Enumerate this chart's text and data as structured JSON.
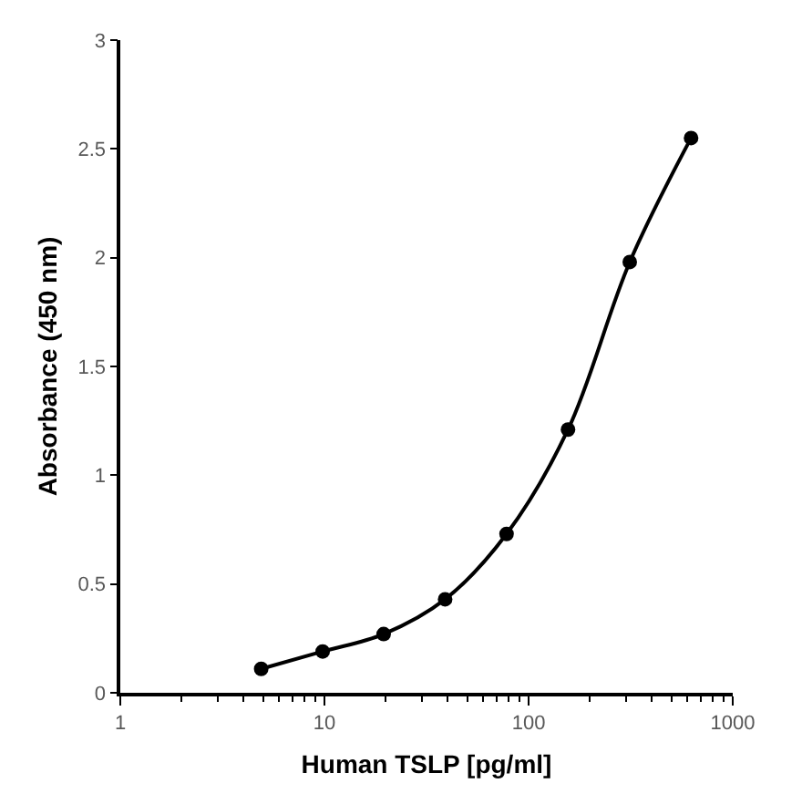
{
  "chart_data": {
    "type": "line",
    "xlabel": "Human TSLP [pg/ml]",
    "ylabel": "Absorbance (450 nm)",
    "x": [
      4.9,
      9.8,
      19.5,
      39,
      78,
      156,
      313,
      625
    ],
    "series": [
      {
        "color": "#000000",
        "values": [
          0.11,
          0.19,
          0.27,
          0.43,
          0.73,
          1.21,
          1.98,
          2.55
        ]
      }
    ],
    "log": "x",
    "marker": "circle",
    "line_style": "solid",
    "xlim": [
      1,
      1000
    ],
    "xticks": [
      1,
      {
        "value": 2,
        "label": null
      },
      {
        "value": 3,
        "label": null
      },
      {
        "value": 4,
        "label": null
      },
      {
        "value": 5,
        "label": null
      },
      {
        "value": 6,
        "label": null
      },
      {
        "value": 7,
        "label": null
      },
      {
        "value": 8,
        "label": null
      },
      {
        "value": 9,
        "label": null
      },
      10,
      {
        "value": 20,
        "label": null
      },
      {
        "value": 30,
        "label": null
      },
      {
        "value": 40,
        "label": null
      },
      {
        "value": 50,
        "label": null
      },
      {
        "value": 60,
        "label": null
      },
      {
        "value": 70,
        "label": null
      },
      {
        "value": 80,
        "label": null
      },
      {
        "value": 90,
        "label": null
      },
      100,
      {
        "value": 200,
        "label": null
      },
      {
        "value": 300,
        "label": null
      },
      {
        "value": 400,
        "label": null
      },
      {
        "value": 500,
        "label": null
      },
      {
        "value": 600,
        "label": null
      },
      {
        "value": 700,
        "label": null
      },
      {
        "value": 800,
        "label": null
      },
      {
        "value": 900,
        "label": null
      },
      1000
    ],
    "ylim": [
      0,
      3
    ],
    "yticks": [
      0,
      0.5,
      1,
      1.5,
      2,
      2.5,
      3
    ]
  }
}
